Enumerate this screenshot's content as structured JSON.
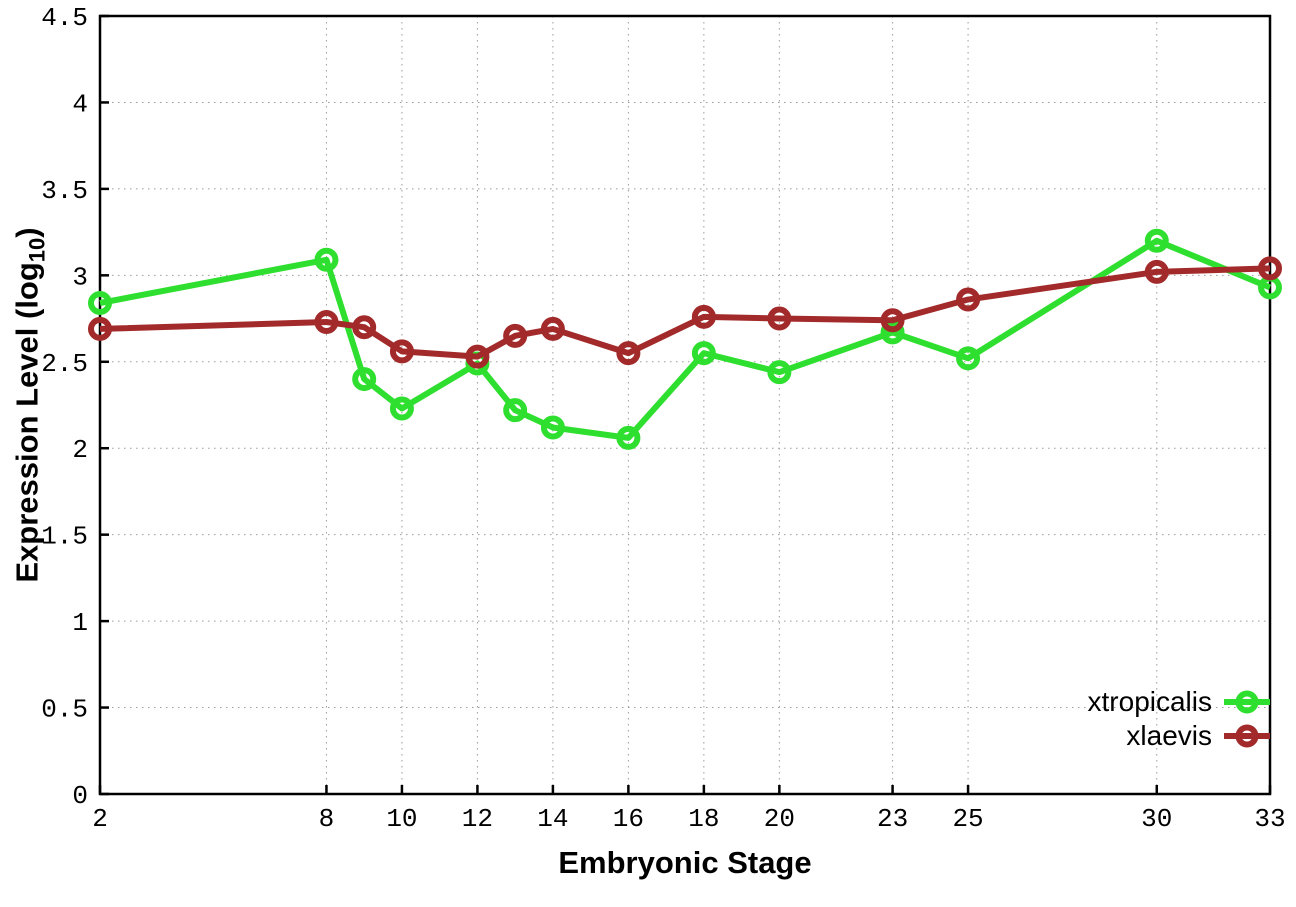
{
  "chart_data": {
    "type": "line",
    "title": "",
    "xlabel": "Embryonic Stage",
    "ylabel": "Expression Level (log10)",
    "ylabel_parts": {
      "prefix": "Expression Level (log",
      "sub": "10",
      "suffix": ")"
    },
    "xlim": [
      2,
      33
    ],
    "ylim": [
      0,
      4.5
    ],
    "grid": true,
    "legend_position": "inside bottom-right",
    "xticks": [
      "2",
      "8",
      "10",
      "12",
      "14",
      "16",
      "18",
      "20",
      "23",
      "25",
      "30",
      "33"
    ],
    "yticks": [
      "0",
      "0.5",
      "1",
      "1.5",
      "2",
      "2.5",
      "3",
      "3.5",
      "4",
      "4.5"
    ],
    "x": [
      2,
      8,
      9,
      10,
      12,
      13,
      14,
      16,
      18,
      20,
      23,
      25,
      30,
      33
    ],
    "series": [
      {
        "name": "xtropicalis",
        "color": "#2fdf2f",
        "values": [
          2.84,
          3.09,
          2.4,
          2.23,
          2.49,
          2.22,
          2.12,
          2.06,
          2.55,
          2.44,
          2.67,
          2.52,
          3.2,
          2.93
        ]
      },
      {
        "name": "xlaevis",
        "color": "#a32a2a",
        "values": [
          2.69,
          2.73,
          2.7,
          2.56,
          2.53,
          2.65,
          2.69,
          2.55,
          2.76,
          2.75,
          2.74,
          2.86,
          3.02,
          3.04
        ]
      }
    ]
  },
  "colors": {
    "background": "#ffffff",
    "axis": "#000000",
    "grid": "#9b9b9b",
    "tick_text": "#000000"
  }
}
